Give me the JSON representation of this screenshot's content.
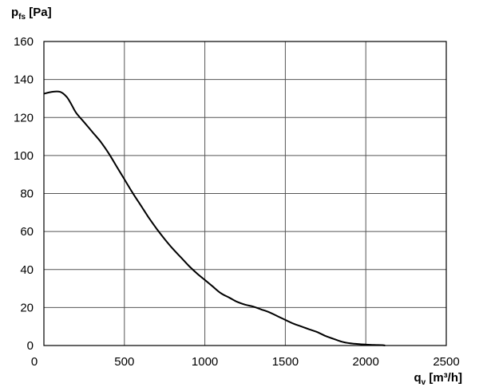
{
  "chart_data": {
    "type": "line",
    "title": "",
    "ylabel": {
      "main": "p",
      "sub": "fs",
      "unit": " [Pa]"
    },
    "xlabel": {
      "main": "q",
      "sub": "v",
      "unit": " [m³/h]"
    },
    "xlim": [
      0,
      2500
    ],
    "ylim": [
      0,
      160
    ],
    "xticks": [
      "0",
      "500",
      "1000",
      "1500",
      "2000",
      "2500"
    ],
    "yticks": [
      "0",
      "20",
      "40",
      "60",
      "80",
      "100",
      "120",
      "140",
      "160"
    ],
    "grid": true,
    "line_color": "#000000",
    "grid_color": "#555555",
    "series": [
      {
        "x": [
          0,
          50,
          100,
          140,
          170,
          200,
          250,
          300,
          350,
          400,
          450,
          500,
          550,
          600,
          650,
          700,
          750,
          800,
          850,
          900,
          950,
          1000,
          1050,
          1100,
          1150,
          1200,
          1250,
          1300,
          1350,
          1400,
          1450,
          1500,
          1550,
          1600,
          1650,
          1700,
          1750,
          1800,
          1850,
          1900,
          1950,
          2000,
          2050,
          2100,
          2120
        ],
        "y": [
          132.5,
          133.5,
          133.5,
          131,
          127,
          122.5,
          117.5,
          112.5,
          107.5,
          101.5,
          94.5,
          87.5,
          80.5,
          74,
          67.5,
          61.5,
          56,
          51,
          46.5,
          42,
          38,
          34.5,
          31,
          27.5,
          25.3,
          23,
          21.5,
          20.5,
          19,
          17.5,
          15.5,
          13.5,
          11.5,
          10,
          8.5,
          7,
          5,
          3.5,
          2,
          1.2,
          0.8,
          0.5,
          0.3,
          0.2,
          0
        ]
      }
    ]
  }
}
